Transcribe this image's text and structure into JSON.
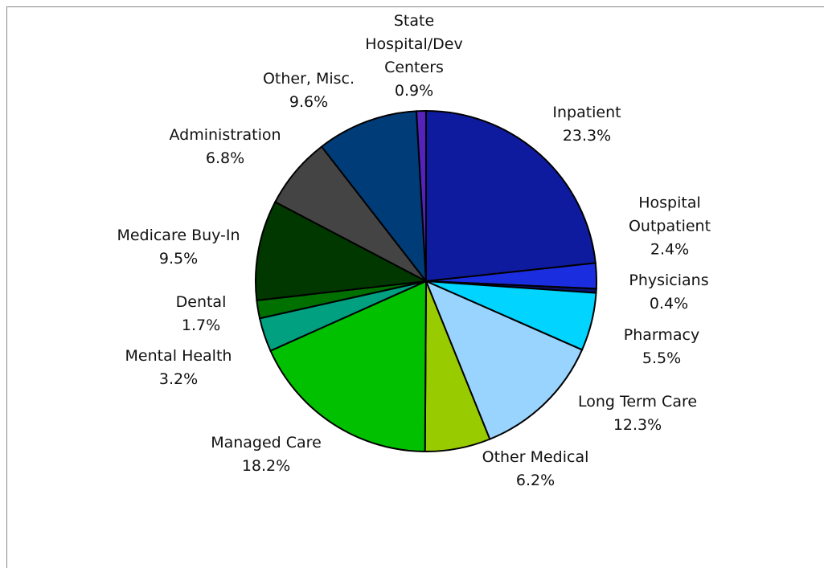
{
  "chart_data": {
    "type": "pie",
    "categories": [
      "Inpatient",
      "Hospital Outpatient",
      "Physicians",
      "Pharmacy",
      "Long Term Care",
      "Other Medical",
      "Managed Care",
      "Mental Health",
      "Dental",
      "Medicare Buy-In",
      "Administration",
      "Other, Misc.",
      "State Hospital/Dev Centers"
    ],
    "values": [
      23.3,
      2.4,
      0.4,
      5.5,
      12.3,
      6.2,
      18.2,
      3.2,
      1.7,
      9.5,
      6.8,
      9.6,
      0.9
    ],
    "value_labels": [
      "23.3%",
      "2.4%",
      "0.4%",
      "5.5%",
      "12.3%",
      "6.2%",
      "18.2%",
      "3.2%",
      "1.7%",
      "9.5%",
      "6.8%",
      "9.6%",
      "0.9%"
    ],
    "colors": [
      "#0f1b9e",
      "#1a2ee0",
      "#0a1270",
      "#00d4ff",
      "#99d4ff",
      "#99cc00",
      "#00c000",
      "#00a080",
      "#007000",
      "#003800",
      "#444444",
      "#003c78",
      "#5522bb"
    ]
  }
}
